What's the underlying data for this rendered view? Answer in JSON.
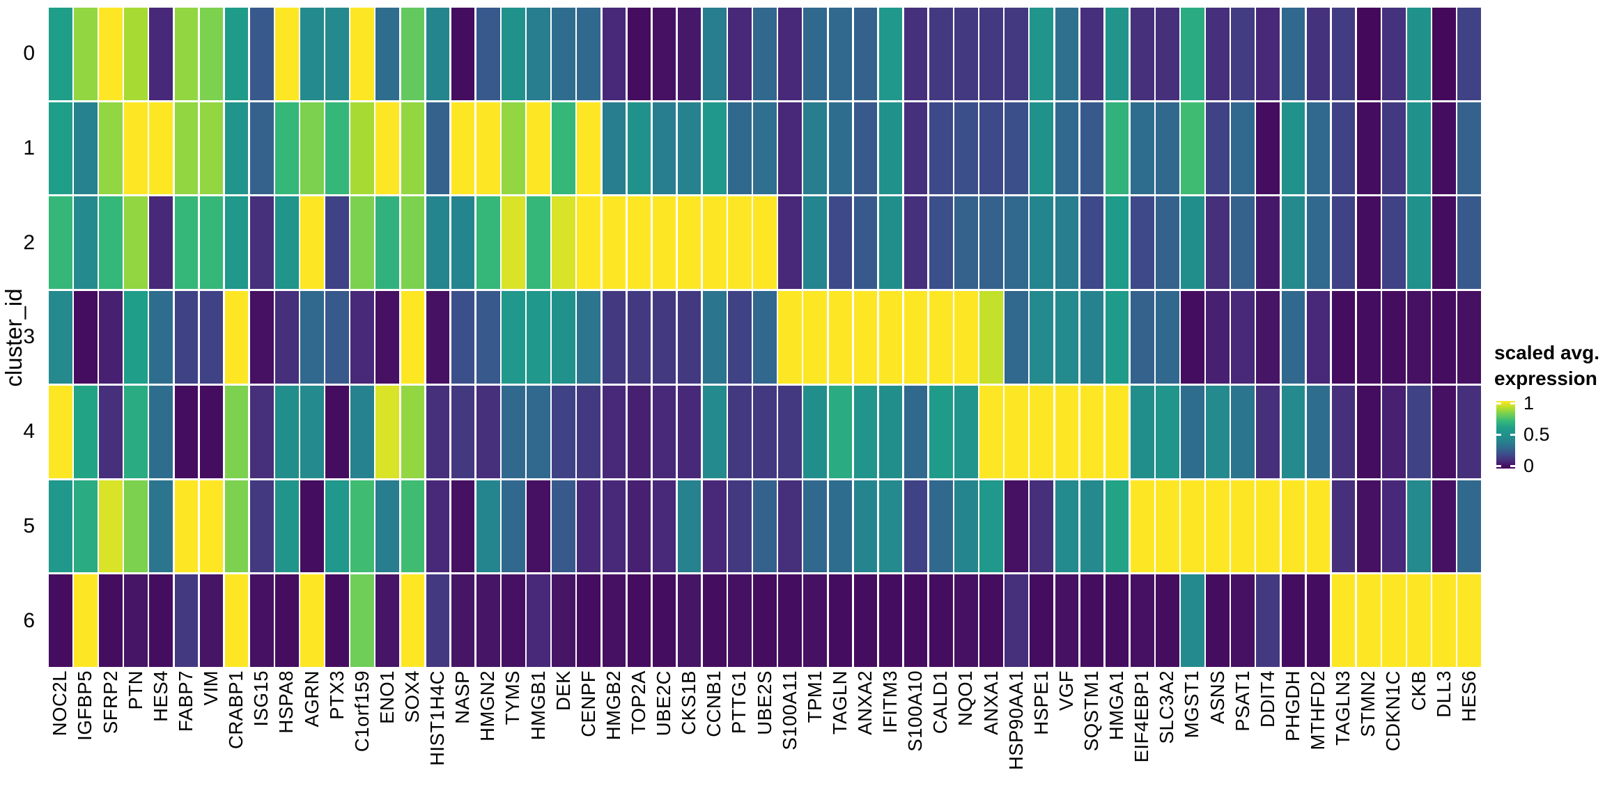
{
  "y_axis": {
    "title": "cluster_id",
    "labels": [
      "0",
      "1",
      "2",
      "3",
      "4",
      "5",
      "6"
    ]
  },
  "legend": {
    "title_line1": "scaled avg.",
    "title_line2": "expression",
    "ticks": [
      {
        "label": "1",
        "value": 1
      },
      {
        "label": "0.5",
        "value": 0.5
      },
      {
        "label": "0",
        "value": 0
      }
    ]
  },
  "chart_data": {
    "type": "heatmap",
    "xlabel": "",
    "ylabel": "cluster_id",
    "legend_title": "scaled avg. expression",
    "colormap": "viridis",
    "value_range": [
      0,
      1
    ],
    "grid": false,
    "legend_position": "right",
    "colormap_stops": [
      "#440154",
      "#482878",
      "#3e4989",
      "#31688e",
      "#26828e",
      "#21918c",
      "#1f9e89",
      "#35b779",
      "#6ece58",
      "#b5de2b",
      "#fde725"
    ],
    "x_categories": [
      "NOC2L",
      "IGFBP5",
      "SFRP2",
      "PTN",
      "HES4",
      "FABP7",
      "VIM",
      "CRABP1",
      "ISG15",
      "HSPA8",
      "AGRN",
      "PTX3",
      "C1orf159",
      "ENO1",
      "SOX4",
      "HIST1H4C",
      "NASP",
      "HMGN2",
      "TYMS",
      "HMGB1",
      "DEK",
      "CENPF",
      "HMGB2",
      "TOP2A",
      "UBE2C",
      "CKS1B",
      "CCNB1",
      "PTTG1",
      "UBE2S",
      "S100A11",
      "TPM1",
      "TAGLN",
      "ANXA2",
      "IFITM3",
      "S100A10",
      "CALD1",
      "NQO1",
      "ANXA1",
      "HSP90AA1",
      "HSPE1",
      "VGF",
      "SQSTM1",
      "HMGA1",
      "EIF4EBP1",
      "SLC3A2",
      "MGST1",
      "ASNS",
      "PSAT1",
      "DDIT4",
      "PHGDH",
      "MTHFD2",
      "TAGLN3",
      "STMN2",
      "CDKN1C",
      "CKB",
      "DLL3",
      "HES6"
    ],
    "y_categories": [
      "0",
      "1",
      "2",
      "3",
      "4",
      "5",
      "6"
    ],
    "values": [
      [
        0.6,
        0.85,
        1.0,
        0.88,
        0.1,
        0.85,
        0.82,
        0.58,
        0.25,
        1.0,
        0.45,
        0.45,
        1.0,
        0.32,
        0.78,
        0.42,
        0.03,
        0.25,
        0.5,
        0.38,
        0.32,
        0.3,
        0.1,
        0.03,
        0.04,
        0.06,
        0.38,
        0.1,
        0.3,
        0.1,
        0.3,
        0.3,
        0.28,
        0.55,
        0.12,
        0.15,
        0.15,
        0.15,
        0.15,
        0.52,
        0.33,
        0.12,
        0.52,
        0.12,
        0.12,
        0.65,
        0.12,
        0.16,
        0.1,
        0.3,
        0.13,
        0.16,
        0.02,
        0.13,
        0.5,
        0.02,
        0.18
      ],
      [
        0.6,
        0.4,
        0.85,
        1.0,
        1.0,
        0.85,
        0.85,
        0.52,
        0.28,
        0.7,
        0.82,
        0.7,
        0.88,
        1.0,
        0.85,
        0.28,
        1.0,
        1.0,
        0.85,
        1.0,
        0.7,
        1.0,
        0.38,
        0.5,
        0.38,
        0.4,
        0.55,
        0.3,
        0.33,
        0.1,
        0.38,
        0.32,
        0.25,
        0.5,
        0.12,
        0.2,
        0.22,
        0.2,
        0.22,
        0.5,
        0.3,
        0.25,
        0.68,
        0.32,
        0.3,
        0.72,
        0.18,
        0.3,
        0.03,
        0.5,
        0.3,
        0.18,
        0.03,
        0.15,
        0.5,
        0.03,
        0.28
      ],
      [
        0.7,
        0.45,
        0.7,
        0.85,
        0.1,
        0.7,
        0.7,
        0.55,
        0.12,
        0.52,
        1.0,
        0.18,
        0.82,
        0.68,
        0.82,
        0.42,
        0.42,
        0.7,
        0.95,
        0.7,
        0.95,
        1.0,
        1.0,
        1.0,
        1.0,
        1.0,
        1.0,
        1.0,
        1.0,
        0.1,
        0.42,
        0.2,
        0.25,
        0.48,
        0.12,
        0.22,
        0.28,
        0.28,
        0.3,
        0.42,
        0.38,
        0.2,
        0.58,
        0.2,
        0.28,
        0.48,
        0.12,
        0.28,
        0.06,
        0.45,
        0.3,
        0.18,
        0.03,
        0.18,
        0.5,
        0.03,
        0.25
      ],
      [
        0.45,
        0.03,
        0.08,
        0.6,
        0.32,
        0.18,
        0.18,
        1.0,
        0.04,
        0.12,
        0.3,
        0.25,
        0.1,
        0.04,
        1.0,
        0.04,
        0.22,
        0.25,
        0.55,
        0.55,
        0.5,
        0.35,
        0.15,
        0.15,
        0.15,
        0.15,
        0.35,
        0.18,
        0.3,
        1.0,
        1.0,
        1.0,
        1.0,
        1.0,
        1.0,
        1.0,
        1.0,
        0.92,
        0.3,
        0.45,
        0.45,
        0.4,
        0.58,
        0.28,
        0.3,
        0.03,
        0.08,
        0.1,
        0.05,
        0.3,
        0.1,
        0.03,
        0.03,
        0.03,
        0.04,
        0.03,
        0.04
      ],
      [
        1.0,
        0.62,
        0.12,
        0.65,
        0.32,
        0.03,
        0.03,
        0.82,
        0.12,
        0.48,
        0.45,
        0.03,
        0.4,
        0.95,
        0.85,
        0.12,
        0.15,
        0.12,
        0.3,
        0.3,
        0.18,
        0.15,
        0.1,
        0.08,
        0.1,
        0.1,
        0.45,
        0.15,
        0.15,
        0.15,
        0.48,
        0.65,
        0.52,
        0.48,
        0.3,
        0.58,
        0.52,
        1.0,
        1.0,
        1.0,
        1.0,
        1.0,
        1.0,
        0.48,
        0.52,
        0.32,
        0.45,
        0.35,
        0.12,
        0.45,
        0.32,
        0.12,
        0.03,
        0.08,
        0.18,
        0.04,
        0.12
      ],
      [
        0.55,
        0.65,
        0.95,
        0.82,
        0.35,
        1.0,
        1.0,
        0.82,
        0.15,
        0.52,
        0.03,
        0.55,
        0.72,
        0.38,
        0.72,
        0.1,
        0.04,
        0.42,
        0.3,
        0.04,
        0.25,
        0.1,
        0.1,
        0.08,
        0.1,
        0.4,
        0.1,
        0.15,
        0.28,
        0.12,
        0.3,
        0.32,
        0.42,
        0.45,
        0.18,
        0.3,
        0.42,
        0.55,
        0.04,
        0.12,
        0.45,
        0.45,
        0.62,
        1.0,
        1.0,
        1.0,
        1.0,
        1.0,
        1.0,
        1.0,
        1.0,
        0.12,
        0.04,
        0.1,
        0.45,
        0.04,
        0.3
      ],
      [
        0.03,
        1.0,
        0.03,
        0.05,
        0.03,
        0.15,
        0.05,
        1.0,
        0.04,
        0.03,
        1.0,
        0.03,
        0.8,
        0.05,
        1.0,
        0.15,
        0.05,
        0.05,
        0.04,
        0.1,
        0.05,
        0.03,
        0.04,
        0.03,
        0.03,
        0.05,
        0.03,
        0.04,
        0.03,
        0.03,
        0.04,
        0.03,
        0.03,
        0.03,
        0.03,
        0.03,
        0.04,
        0.03,
        0.12,
        0.03,
        0.04,
        0.03,
        0.03,
        0.04,
        0.03,
        0.45,
        0.03,
        0.04,
        0.15,
        0.03,
        0.03,
        1.0,
        1.0,
        1.0,
        1.0,
        1.0,
        1.0
      ]
    ]
  }
}
